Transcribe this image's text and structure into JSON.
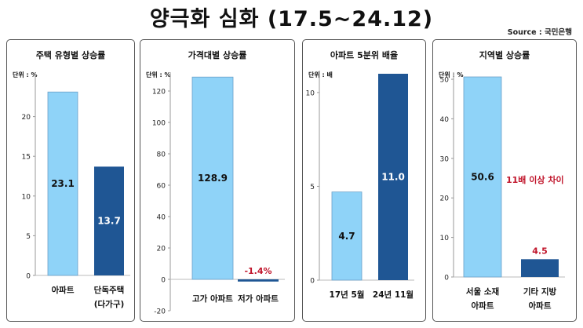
{
  "header": {
    "title": "양극화 심화 (17.5~24.12)",
    "source": "Source : 국민은행"
  },
  "colors": {
    "light_bar": "#8fd3f8",
    "dark_bar": "#1f5694",
    "annotation": "#c0142a"
  },
  "chart_data": [
    {
      "type": "bar",
      "title": "주택 유형별 상승률",
      "unit": "단위 : %",
      "categories": [
        [
          "아파트"
        ],
        [
          "단독주택",
          "(다가구)"
        ]
      ],
      "values": [
        23.1,
        13.7
      ],
      "value_labels": [
        "23.1",
        "13.7"
      ],
      "bar_colors": [
        "light",
        "dark"
      ],
      "ylim": [
        0,
        25
      ],
      "yticks": [
        0,
        5,
        10,
        15,
        20
      ],
      "grid": false
    },
    {
      "type": "bar",
      "title": "가격대별 상승률",
      "unit": "단위 : %",
      "categories": [
        [
          "고가 아파트"
        ],
        [
          "저가 아파트"
        ]
      ],
      "values": [
        128.9,
        -1.4
      ],
      "value_labels": [
        "128.9",
        "-1.4%"
      ],
      "bar_colors": [
        "light",
        "dark"
      ],
      "ylim": [
        -20,
        130
      ],
      "yticks": [
        -20,
        0,
        20,
        40,
        60,
        80,
        100,
        120
      ],
      "grid": false
    },
    {
      "type": "bar",
      "title": "아파트 5분위 배율",
      "unit": "단위 : 배",
      "categories": [
        [
          "17년 5월"
        ],
        [
          "24년 11월"
        ]
      ],
      "values": [
        4.7,
        11.0
      ],
      "value_labels": [
        "4.7",
        "11.0"
      ],
      "bar_colors": [
        "light",
        "dark"
      ],
      "ylim": [
        0,
        11
      ],
      "yticks": [
        0,
        5,
        10
      ],
      "grid": false
    },
    {
      "type": "bar",
      "title": "지역별 상승률",
      "unit": "단위 : %",
      "categories": [
        [
          "서울 소재",
          "아파트"
        ],
        [
          "기타 지방",
          "아파트"
        ]
      ],
      "values": [
        50.6,
        4.5
      ],
      "value_labels": [
        "50.6",
        "4.5"
      ],
      "bar_colors": [
        "light",
        "dark"
      ],
      "ylim": [
        0,
        51
      ],
      "yticks": [
        0,
        10,
        20,
        30,
        40,
        50
      ],
      "grid": false,
      "annotation": "11배 이상 차이"
    }
  ]
}
